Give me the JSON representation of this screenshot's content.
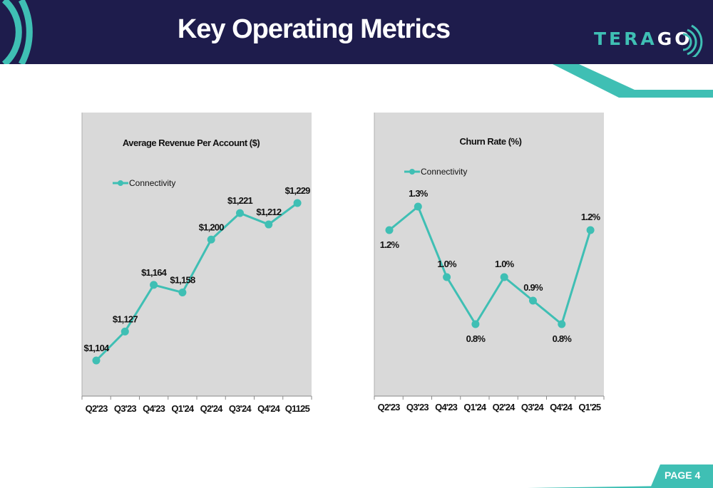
{
  "header": {
    "title": "Key Operating Metrics",
    "logo_main": "TERA",
    "logo_accent": "GO",
    "bg_color": "#1e1c4c",
    "accent_color": "#3fbfb4"
  },
  "footer": {
    "page_label": "PAGE 4"
  },
  "chart_data": [
    {
      "type": "line",
      "title": "Average Revenue Per Account ($)",
      "categories": [
        "Q2'23",
        "Q3'23",
        "Q4'23",
        "Q1'24",
        "Q2'24",
        "Q3'24",
        "Q4'24",
        "Q1125"
      ],
      "series": [
        {
          "name": "Connectivity",
          "values": [
            1104,
            1127,
            1164,
            1158,
            1200,
            1221,
            1212,
            1229
          ],
          "labels": [
            "$1,104",
            "$1,127",
            "$1,164",
            "$1,158",
            "$1,200",
            "$1,221",
            "$1,212",
            "$1,229"
          ],
          "color": "#3fbfb4"
        }
      ],
      "ylim": [
        1060,
        1260
      ],
      "legend": "top-left",
      "grid": false,
      "background": "#d9d9d9"
    },
    {
      "type": "line",
      "title": "Churn Rate (%)",
      "categories": [
        "Q2'23",
        "Q3'23",
        "Q4'23",
        "Q1'24",
        "Q2'24",
        "Q3'24",
        "Q4'24",
        "Q1'25"
      ],
      "series": [
        {
          "name": "Connectivity",
          "values": [
            1.2,
            1.3,
            1.0,
            0.8,
            1.0,
            0.9,
            0.8,
            1.2
          ],
          "labels": [
            "1.2%",
            "1.3%",
            "1.0%",
            "0.8%",
            "1.0%",
            "0.9%",
            "0.8%",
            "1.2%"
          ],
          "label_positions": [
            "below",
            "above",
            "above",
            "below",
            "above",
            "above",
            "below",
            "above"
          ],
          "color": "#3fbfb4"
        }
      ],
      "ylim": [
        0.0,
        1.6
      ],
      "legend": "top-left",
      "grid": false,
      "background": "#d9d9d9"
    }
  ]
}
